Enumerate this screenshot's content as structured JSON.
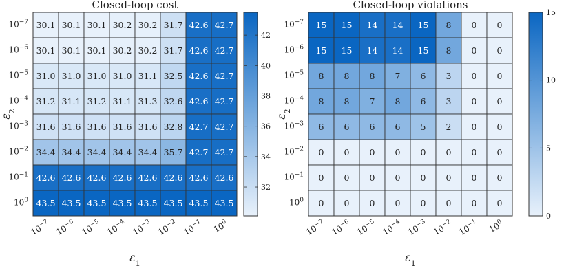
{
  "chart_data": [
    {
      "type": "heatmap",
      "title": "Closed-loop cost",
      "xlabel": "ε1",
      "ylabel": "ε2",
      "x_categories": [
        "10^-7",
        "10^-6",
        "10^-5",
        "10^-4",
        "10^-3",
        "10^-2",
        "10^-1",
        "10^0"
      ],
      "y_categories": [
        "10^-7",
        "10^-6",
        "10^-5",
        "10^-4",
        "10^-3",
        "10^-2",
        "10^-1",
        "10^0"
      ],
      "values": [
        [
          30.1,
          30.1,
          30.1,
          30.2,
          30.2,
          31.7,
          42.6,
          42.7
        ],
        [
          30.1,
          30.1,
          30.1,
          30.2,
          30.2,
          31.7,
          42.6,
          42.7
        ],
        [
          31.0,
          31.0,
          31.0,
          31.0,
          31.1,
          32.5,
          42.6,
          42.7
        ],
        [
          31.2,
          31.1,
          31.2,
          31.1,
          31.3,
          32.6,
          42.6,
          42.7
        ],
        [
          31.6,
          31.6,
          31.6,
          31.6,
          31.6,
          32.8,
          42.7,
          42.7
        ],
        [
          34.4,
          34.4,
          34.4,
          34.4,
          34.4,
          35.7,
          42.7,
          42.7
        ],
        [
          42.6,
          42.6,
          42.6,
          42.6,
          42.6,
          42.6,
          42.6,
          42.6
        ],
        [
          43.5,
          43.5,
          43.5,
          43.5,
          43.5,
          43.5,
          43.5,
          43.5
        ]
      ],
      "value_format": "1dp",
      "colorbar": {
        "min": 30.1,
        "max": 43.5,
        "ticks": [
          32,
          34,
          36,
          38,
          40,
          42
        ]
      },
      "colors": {
        "low": "#e8f1fb",
        "high": "#0a66c2"
      }
    },
    {
      "type": "heatmap",
      "title": "Closed-loop violations",
      "xlabel": "ε1",
      "ylabel": "ε2",
      "x_categories": [
        "10^-7",
        "10^-6",
        "10^-5",
        "10^-4",
        "10^-3",
        "10^-2",
        "10^-1",
        "10^0"
      ],
      "y_categories": [
        "10^-7",
        "10^-6",
        "10^-5",
        "10^-4",
        "10^-3",
        "10^-2",
        "10^-1",
        "10^0"
      ],
      "values": [
        [
          15,
          15,
          14,
          14,
          15,
          8,
          0,
          0
        ],
        [
          15,
          15,
          14,
          14,
          15,
          8,
          0,
          0
        ],
        [
          8,
          8,
          8,
          7,
          6,
          3,
          0,
          0
        ],
        [
          8,
          8,
          7,
          8,
          6,
          3,
          0,
          0
        ],
        [
          6,
          6,
          6,
          6,
          5,
          2,
          0,
          0
        ],
        [
          0,
          0,
          0,
          0,
          0,
          0,
          0,
          0
        ],
        [
          0,
          0,
          0,
          0,
          0,
          0,
          0,
          0
        ],
        [
          0,
          0,
          0,
          0,
          0,
          0,
          0,
          0
        ]
      ],
      "value_format": "int",
      "colorbar": {
        "min": 0,
        "max": 15,
        "ticks": [
          0,
          5,
          10,
          15
        ]
      },
      "colors": {
        "low": "#e8f1fb",
        "high": "#0a66c2"
      }
    }
  ]
}
